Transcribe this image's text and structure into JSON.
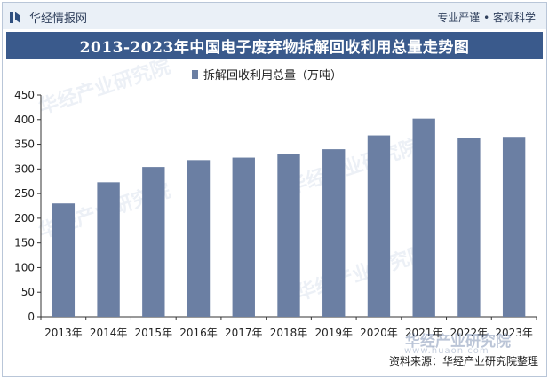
{
  "header": {
    "brand": "华经情报网",
    "right_text": "专业严谨 • 客观科学",
    "brand_icon": "brand-logo-icon"
  },
  "title": "2013-2023年中国电子废弃物拆解回收利用总量走势图",
  "legend": {
    "label": "拆解回收利用总量（万吨）"
  },
  "watermark": {
    "main": "华经产业研究院",
    "sub": "www.huaon.com"
  },
  "source": "资料来源：华经产业研究院整理",
  "colors": {
    "bar": "#6b7fa3",
    "title_bg": "#3a5a8c",
    "topbar_bg": "#eaf0f7"
  },
  "chart_data": {
    "type": "bar",
    "title": "2013-2023年中国电子废弃物拆解回收利用总量走势图",
    "categories": [
      "2013年",
      "2014年",
      "2015年",
      "2016年",
      "2017年",
      "2018年",
      "2019年",
      "2020年",
      "2021年",
      "2022年",
      "2023年"
    ],
    "series": [
      {
        "name": "拆解回收利用总量（万吨）",
        "values": [
          230,
          273,
          304,
          318,
          323,
          330,
          340,
          368,
          402,
          362,
          365
        ]
      }
    ],
    "ylim": [
      0,
      450
    ],
    "yticks": [
      0,
      50,
      100,
      150,
      200,
      250,
      300,
      350,
      400,
      450
    ],
    "grid": false,
    "legend_position": "top-left"
  }
}
